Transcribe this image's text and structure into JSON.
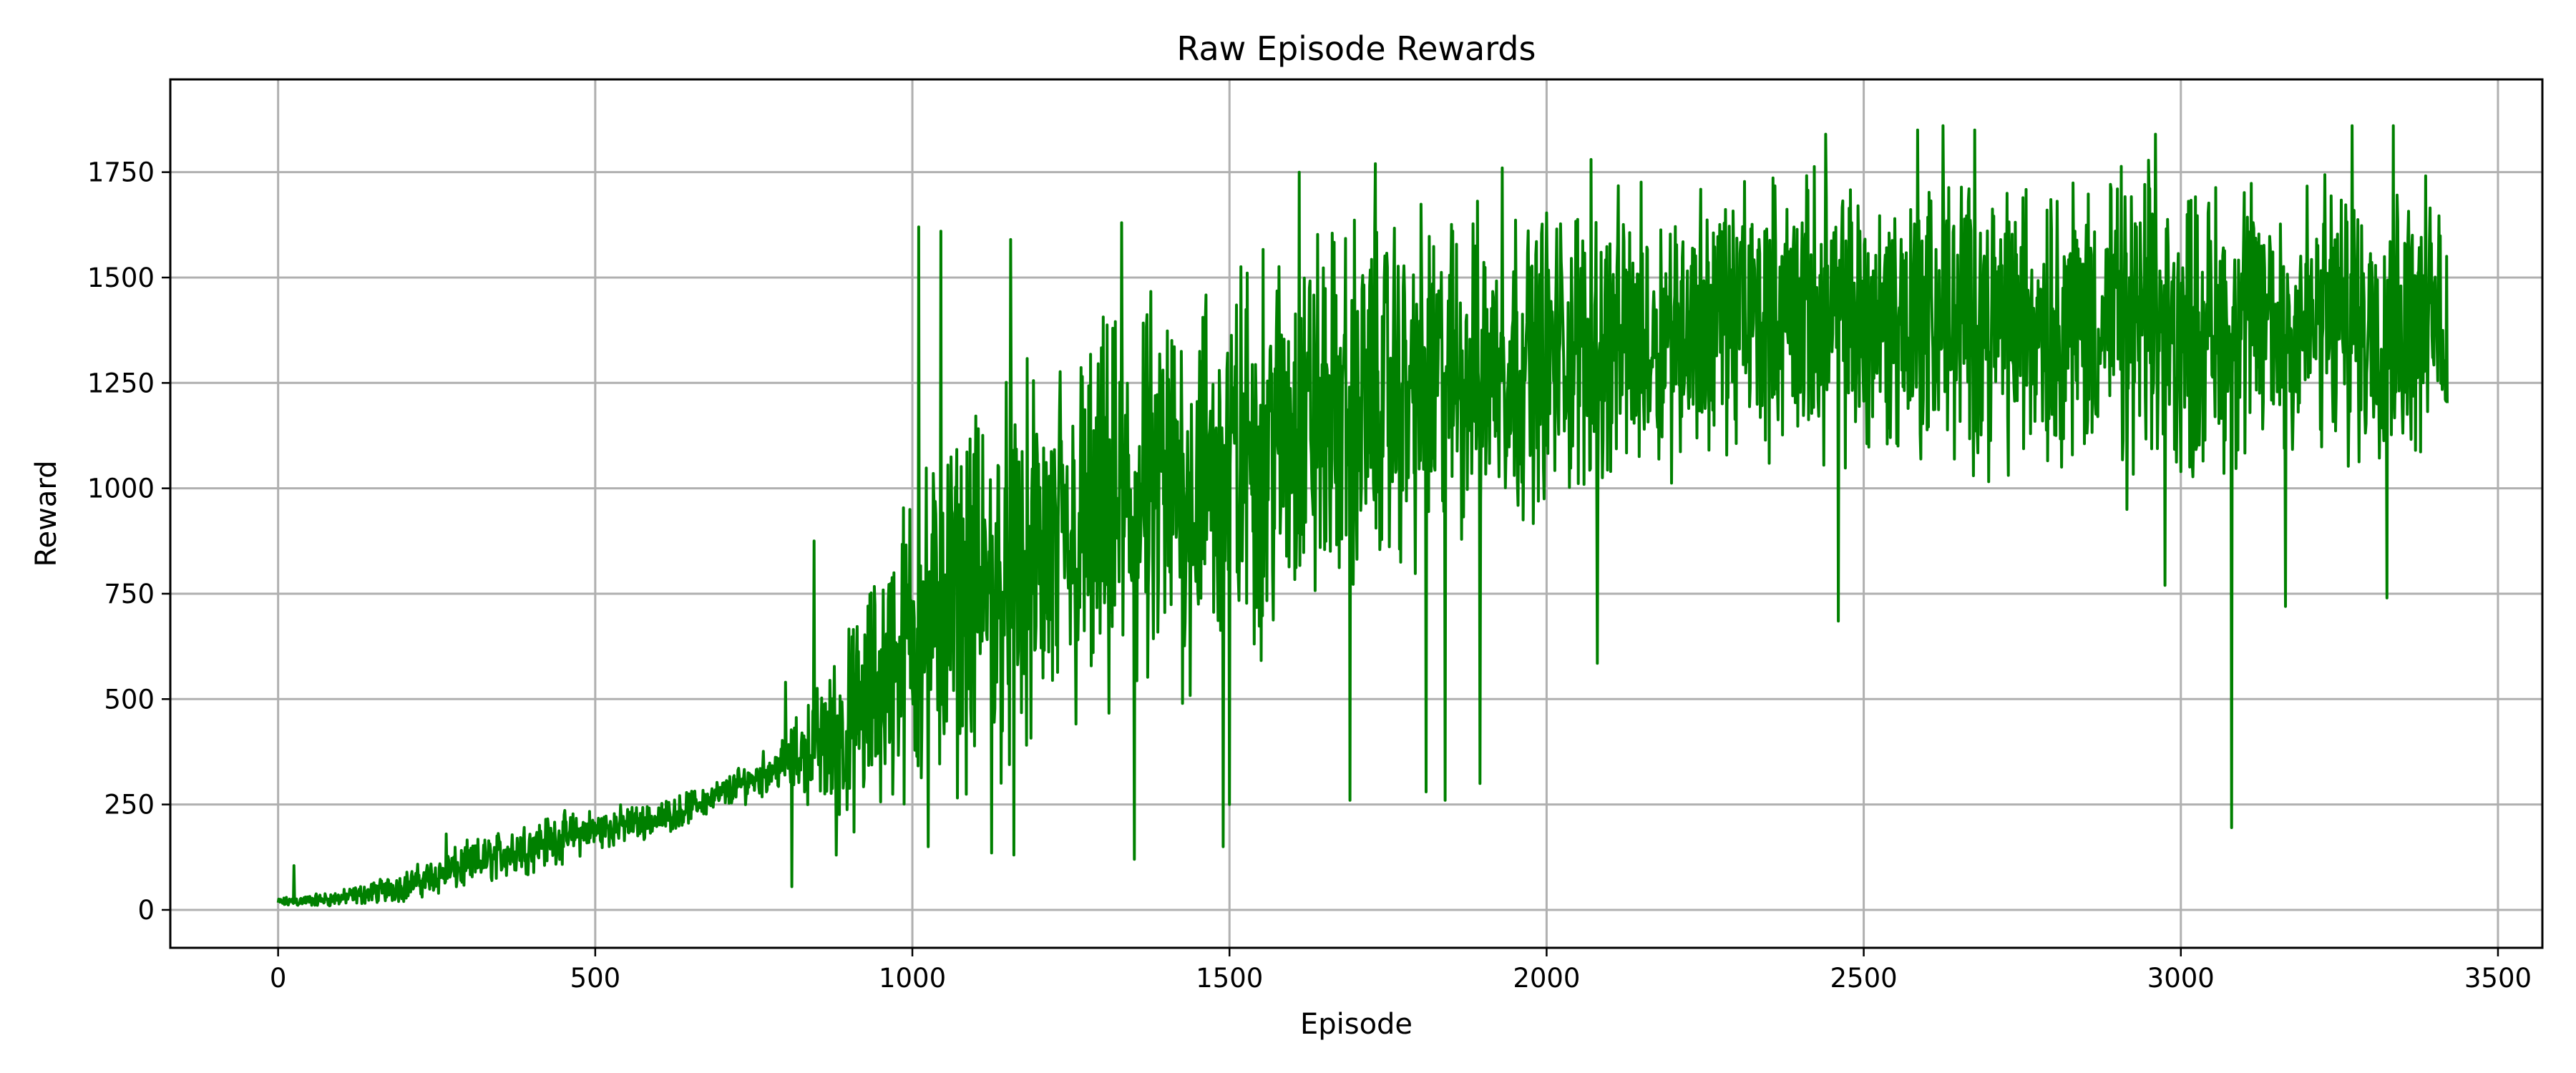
{
  "chart_data": {
    "type": "line",
    "title": "Raw Episode Rewards",
    "xlabel": "Episode",
    "ylabel": "Reward",
    "xlim": [
      -170,
      3570
    ],
    "ylim": [
      -90,
      1970
    ],
    "xticks": [
      0,
      500,
      1000,
      1500,
      2000,
      2500,
      3000,
      3500
    ],
    "yticks": [
      0,
      250,
      500,
      750,
      1000,
      1250,
      1500,
      1750
    ],
    "grid": true,
    "legend": "none",
    "series": [
      {
        "color": "#008000",
        "episode_range": [
          0,
          3420
        ],
        "band_x": [
          0,
          100,
          200,
          300,
          400,
          500,
          600,
          700,
          800,
          900,
          1000,
          1100,
          1200,
          1300,
          1400,
          1500,
          1600,
          1700,
          1800,
          1900,
          2000,
          2100,
          2200,
          2300,
          2400,
          2500,
          2600,
          2700,
          2800,
          2900,
          3000,
          3100,
          3200,
          3300,
          3420
        ],
        "band_lower": [
          5,
          5,
          15,
          40,
          80,
          130,
          170,
          230,
          280,
          150,
          200,
          250,
          280,
          350,
          400,
          500,
          600,
          700,
          750,
          850,
          900,
          950,
          1000,
          1050,
          1050,
          1000,
          1000,
          1000,
          1000,
          1000,
          950,
          1000,
          1000,
          1000,
          1050
        ],
        "band_upper": [
          30,
          50,
          100,
          170,
          230,
          250,
          260,
          320,
          420,
          700,
          1100,
          1250,
          1350,
          1450,
          1550,
          1600,
          1680,
          1700,
          1720,
          1720,
          1730,
          1740,
          1760,
          1780,
          1790,
          1790,
          1800,
          1790,
          1800,
          1800,
          1790,
          1780,
          1790,
          1790,
          1760
        ],
        "spikes_high": [
          [
            25,
            105
          ],
          [
            265,
            180
          ],
          [
            800,
            540
          ],
          [
            845,
            875
          ],
          [
            1010,
            1620
          ],
          [
            1045,
            1610
          ],
          [
            1155,
            1590
          ],
          [
            1330,
            1630
          ],
          [
            1610,
            1750
          ],
          [
            1730,
            1770
          ],
          [
            1930,
            1760
          ],
          [
            2070,
            1780
          ],
          [
            2440,
            1840
          ],
          [
            2585,
            1850
          ],
          [
            2625,
            1860
          ],
          [
            2675,
            1850
          ],
          [
            2960,
            1840
          ],
          [
            3270,
            1860
          ],
          [
            3335,
            1860
          ]
        ],
        "spikes_low": [
          [
            810,
            55
          ],
          [
            880,
            130
          ],
          [
            1025,
            150
          ],
          [
            1125,
            135
          ],
          [
            1160,
            130
          ],
          [
            1350,
            120
          ],
          [
            1490,
            150
          ],
          [
            1500,
            250
          ],
          [
            1690,
            260
          ],
          [
            1810,
            280
          ],
          [
            1840,
            260
          ],
          [
            1895,
            300
          ],
          [
            2080,
            585
          ],
          [
            2460,
            685
          ],
          [
            2915,
            950
          ],
          [
            2975,
            770
          ],
          [
            3080,
            195
          ],
          [
            3165,
            720
          ],
          [
            3325,
            740
          ]
        ]
      }
    ]
  }
}
